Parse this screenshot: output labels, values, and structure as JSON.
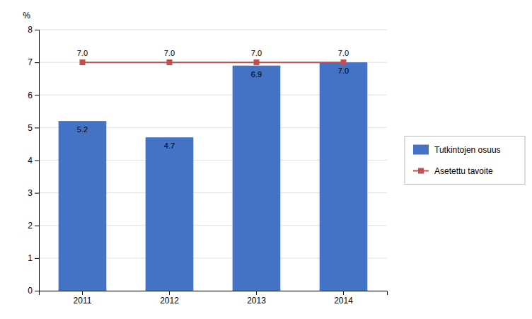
{
  "chart_data": {
    "type": "bar",
    "ylabel": "%",
    "categories": [
      "2011",
      "2012",
      "2013",
      "2014"
    ],
    "series": [
      {
        "name": "Tutkintojen osuus",
        "type": "bar",
        "color": "#4472C4",
        "values": [
          5.2,
          4.7,
          6.9,
          7.0
        ],
        "value_labels": [
          "5.2",
          "4.7",
          "6.9",
          "7.0"
        ]
      },
      {
        "name": "Asetettu tavoite",
        "type": "line",
        "color": "#C0504D",
        "marker": "square",
        "values": [
          7.0,
          7.0,
          7.0,
          7.0
        ],
        "value_labels": [
          "7.0",
          "7.0",
          "7.0",
          "7.0"
        ]
      }
    ],
    "ylim": [
      0,
      8
    ],
    "yticks": [
      0,
      1,
      2,
      3,
      4,
      5,
      6,
      7,
      8
    ],
    "grid": true,
    "legend": "right",
    "data_labels": true
  }
}
